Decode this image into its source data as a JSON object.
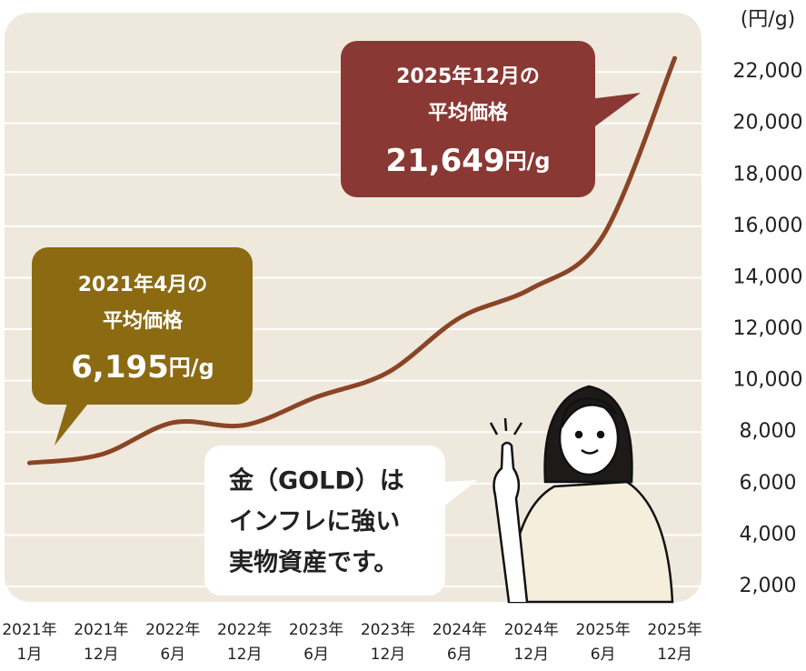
{
  "chart_data": {
    "type": "line",
    "unit_label": "(円/g)",
    "categories": [
      [
        "2021年",
        "1月"
      ],
      [
        "2021年",
        "12月"
      ],
      [
        "2022年",
        "6月"
      ],
      [
        "2022年",
        "12月"
      ],
      [
        "2023年",
        "6月"
      ],
      [
        "2023年",
        "12月"
      ],
      [
        "2024年",
        "6月"
      ],
      [
        "2024年",
        "12月"
      ],
      [
        "2025年",
        "6月"
      ],
      [
        "2025年",
        "12月"
      ]
    ],
    "series": [
      {
        "color": "#8a4426",
        "values": [
          6800,
          7130,
          8370,
          8270,
          9360,
          10320,
          12440,
          13580,
          15630,
          22530
        ]
      }
    ],
    "ylim": [
      1400,
      24300
    ],
    "yticks": [
      {
        "value": 2000,
        "label": "2,000"
      },
      {
        "value": 4000,
        "label": "4,000"
      },
      {
        "value": 6000,
        "label": "6,000"
      },
      {
        "value": 8000,
        "label": "8,000"
      },
      {
        "value": 10000,
        "label": "10,000"
      },
      {
        "value": 12000,
        "label": "12,000"
      },
      {
        "value": 14000,
        "label": "14,000"
      },
      {
        "value": 16000,
        "label": "16,000"
      },
      {
        "value": 18000,
        "label": "18,000"
      },
      {
        "value": 20000,
        "label": "20,000"
      },
      {
        "value": 22000,
        "label": "22,000"
      }
    ],
    "grid": true,
    "annotations": [
      {
        "lines": [
          "2025年12月の",
          "平均価格"
        ],
        "value": "21,649",
        "unit": "円/g",
        "color": "#8a3833"
      },
      {
        "lines": [
          "2021年4月の",
          "平均価格"
        ],
        "value": "6,195",
        "unit": "円/g",
        "color": "#8b6a12"
      },
      {
        "lines": [
          "金（GOLD）は",
          "インフレに強い",
          "実物資産です。"
        ]
      }
    ]
  }
}
